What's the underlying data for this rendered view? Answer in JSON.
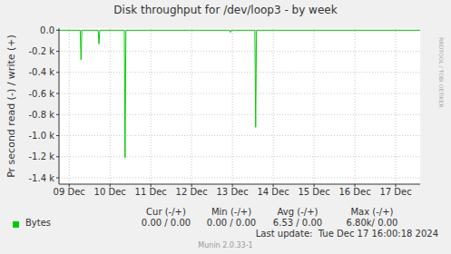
{
  "chart_data": {
    "type": "line",
    "title": "Disk throughput for /dev/loop3 - by week",
    "y_label": "Pr second read (-) / write (+)",
    "x": [
      8.75,
      9.27,
      9.29,
      9.31,
      9.71,
      9.73,
      9.75,
      10.35,
      10.37,
      10.39,
      12.93,
      12.95,
      12.97,
      13.55,
      13.57,
      13.59,
      17.6
    ],
    "series": [
      {
        "name": "Bytes",
        "color": "#00cc00",
        "values": [
          0,
          0,
          -280,
          0,
          0,
          -130,
          0,
          0,
          -1210,
          0,
          0,
          -20,
          0,
          0,
          -920,
          0,
          0
        ],
        "stats": [
          "0.00 / 0.00",
          "0.00 / 0.00",
          "6.53 / 0.00",
          "6.80k/ 0.00"
        ]
      }
    ],
    "stats_columns": [
      "Cur (-/+)",
      "Min (-/+)",
      "Avg (-/+)",
      "Max (-/+)"
    ],
    "xlim": [
      8.75,
      17.6
    ],
    "xticks": [
      {
        "value": 9,
        "label": "09 Dec"
      },
      {
        "value": 10,
        "label": "10 Dec"
      },
      {
        "value": 11,
        "label": "11 Dec"
      },
      {
        "value": 12,
        "label": "12 Dec"
      },
      {
        "value": 13,
        "label": "13 Dec"
      },
      {
        "value": 14,
        "label": "14 Dec"
      },
      {
        "value": 15,
        "label": "15 Dec"
      },
      {
        "value": 16,
        "label": "16 Dec"
      },
      {
        "value": 17,
        "label": "17 Dec"
      }
    ],
    "ylim": [
      -1460,
      20
    ],
    "yticks": [
      {
        "value": 0,
        "label": "0.0"
      },
      {
        "value": -200,
        "label": "-0.2 k"
      },
      {
        "value": -400,
        "label": "-0.4 k"
      },
      {
        "value": -600,
        "label": "-0.6 k"
      },
      {
        "value": -800,
        "label": "-0.8 k"
      },
      {
        "value": -1000,
        "label": "-1.0 k"
      },
      {
        "value": -1200,
        "label": "-1.2 k"
      },
      {
        "value": -1400,
        "label": "-1.4 k"
      }
    ],
    "grid": true,
    "last_update": "Last update:  Tue Dec 17 16:00:18 2024",
    "footer": "Munin 2.0.33-1",
    "watermark": "RRDTOOL / TOBI OETIKER"
  }
}
